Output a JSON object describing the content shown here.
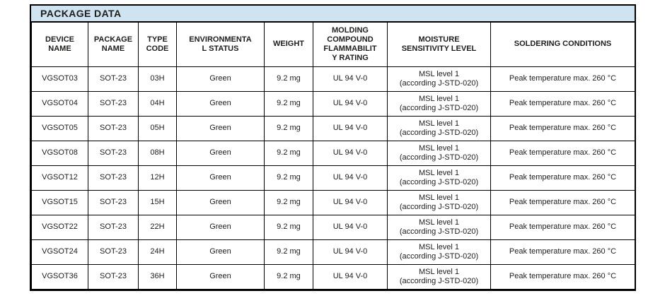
{
  "title": "PACKAGE DATA",
  "colors": {
    "title_bg": "#cfe3f1",
    "border": "#000000",
    "text": "#1d1d1b"
  },
  "table": {
    "column_keys": [
      "device-name",
      "package-name",
      "type-code",
      "environmental-status",
      "weight",
      "molding-compound-flammability-rating",
      "moisture-sensitivity-level",
      "soldering-conditions"
    ],
    "headers": [
      "DEVICE\nNAME",
      "PACKAGE\nNAME",
      "TYPE\nCODE",
      "ENVIRONMENTA\nL STATUS",
      "WEIGHT",
      "MOLDING\nCOMPOUND\nFLAMMABILIT\nY RATING",
      "MOISTURE\nSENSITIVITY LEVEL",
      "SOLDERING CONDITIONS"
    ],
    "rows": [
      {
        "cells": [
          "VGSOT03",
          "SOT-23",
          "03H",
          "Green",
          "9.2 mg",
          "UL 94 V-0",
          "MSL level 1\n(according J-STD-020)",
          "Peak temperature max. 260 °C"
        ]
      },
      {
        "cells": [
          "VGSOT04",
          "SOT-23",
          "04H",
          "Green",
          "9.2 mg",
          "UL 94 V-0",
          "MSL level 1\n(according J-STD-020)",
          "Peak temperature max. 260 °C"
        ]
      },
      {
        "cells": [
          "VGSOT05",
          "SOT-23",
          "05H",
          "Green",
          "9.2 mg",
          "UL 94 V-0",
          "MSL level 1\n(according J-STD-020)",
          "Peak temperature max. 260 °C"
        ]
      },
      {
        "cells": [
          "VGSOT08",
          "SOT-23",
          "08H",
          "Green",
          "9.2 mg",
          "UL 94 V-0",
          "MSL level 1\n(according J-STD-020)",
          "Peak temperature max. 260 °C"
        ]
      },
      {
        "cells": [
          "VGSOT12",
          "SOT-23",
          "12H",
          "Green",
          "9.2 mg",
          "UL 94 V-0",
          "MSL level 1\n(according J-STD-020)",
          "Peak temperature max. 260 °C"
        ]
      },
      {
        "cells": [
          "VGSOT15",
          "SOT-23",
          "15H",
          "Green",
          "9.2 mg",
          "UL 94 V-0",
          "MSL level 1\n(according J-STD-020)",
          "Peak temperature max. 260 °C"
        ]
      },
      {
        "cells": [
          "VGSOT22",
          "SOT-23",
          "22H",
          "Green",
          "9.2 mg",
          "UL 94 V-0",
          "MSL level 1\n(according J-STD-020)",
          "Peak temperature max. 260 °C"
        ]
      },
      {
        "cells": [
          "VGSOT24",
          "SOT-23",
          "24H",
          "Green",
          "9.2 mg",
          "UL 94 V-0",
          "MSL level 1\n(according J-STD-020)",
          "Peak temperature max. 260 °C"
        ]
      },
      {
        "cells": [
          "VGSOT36",
          "SOT-23",
          "36H",
          "Green",
          "9.2 mg",
          "UL 94 V-0",
          "MSL level 1\n(according J-STD-020)",
          "Peak temperature max. 260 °C"
        ]
      }
    ]
  }
}
